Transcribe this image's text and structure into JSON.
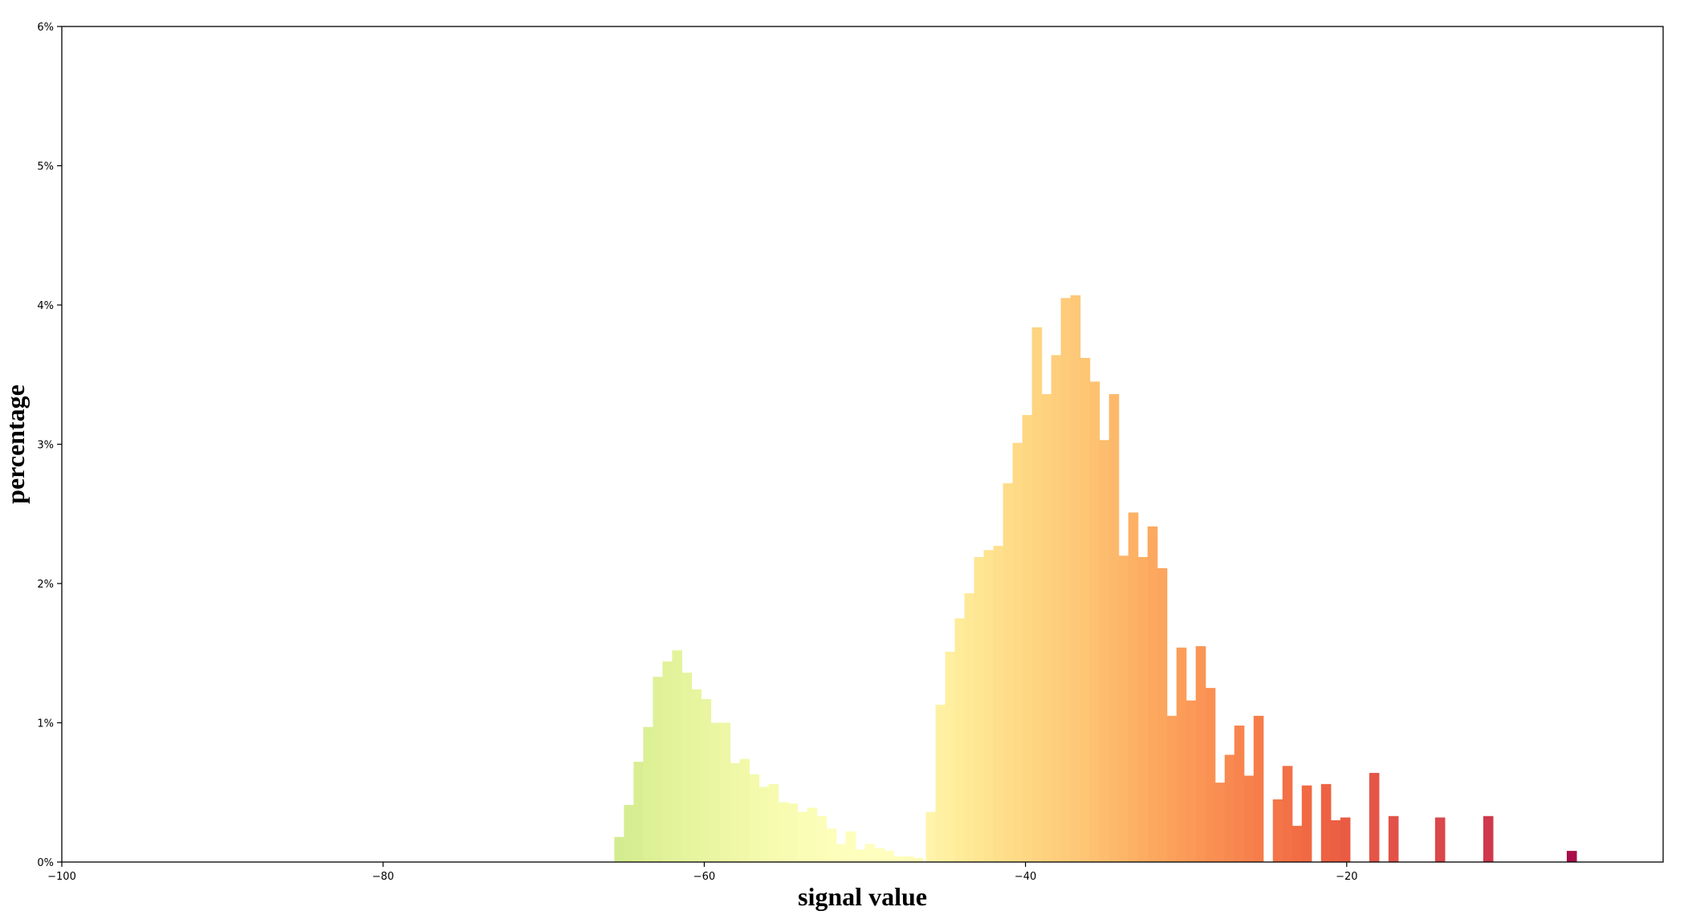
{
  "chart_data": {
    "type": "bar",
    "title": "",
    "xlabel": "signal value",
    "ylabel": "percentage",
    "xlim": [
      -100,
      -0.3
    ],
    "ylim": [
      0,
      6
    ],
    "xticks": [
      -100,
      -80,
      -60,
      -40,
      -20
    ],
    "xtick_labels": [
      "−100",
      "−80",
      "−60",
      "−40",
      "−20"
    ],
    "yticks": [
      0,
      1,
      2,
      3,
      4,
      5,
      6
    ],
    "ytick_labels": [
      "0%",
      "1%",
      "2%",
      "3%",
      "4%",
      "5%",
      "6%"
    ],
    "grid": false,
    "legend": "none",
    "colormap": "Spectral_r",
    "bins": [
      {
        "x0": -65.6,
        "x1": -65.0,
        "value": 0.18,
        "color": "#d3ec8f"
      },
      {
        "x0": -65.0,
        "x1": -64.4,
        "value": 0.41,
        "color": "#d6ed91"
      },
      {
        "x0": -64.4,
        "x1": -63.8,
        "value": 0.72,
        "color": "#d9ee93"
      },
      {
        "x0": -63.8,
        "x1": -63.2,
        "value": 0.97,
        "color": "#dcf095"
      },
      {
        "x0": -63.2,
        "x1": -62.6,
        "value": 1.33,
        "color": "#dff197"
      },
      {
        "x0": -62.6,
        "x1": -62.0,
        "value": 1.44,
        "color": "#e1f299"
      },
      {
        "x0": -62.0,
        "x1": -61.4,
        "value": 1.52,
        "color": "#e3f39b"
      },
      {
        "x0": -61.4,
        "x1": -60.8,
        "value": 1.36,
        "color": "#e5f49d"
      },
      {
        "x0": -60.8,
        "x1": -60.2,
        "value": 1.24,
        "color": "#e7f59f"
      },
      {
        "x0": -60.2,
        "x1": -59.6,
        "value": 1.17,
        "color": "#e9f5a1"
      },
      {
        "x0": -59.6,
        "x1": -59.0,
        "value": 1.0,
        "color": "#ebf6a3"
      },
      {
        "x0": -59.0,
        "x1": -58.4,
        "value": 1.0,
        "color": "#edf7a5"
      },
      {
        "x0": -58.4,
        "x1": -57.8,
        "value": 0.71,
        "color": "#eff8a7"
      },
      {
        "x0": -57.8,
        "x1": -57.2,
        "value": 0.74,
        "color": "#f1f9a9"
      },
      {
        "x0": -57.2,
        "x1": -56.6,
        "value": 0.63,
        "color": "#f3faab"
      },
      {
        "x0": -56.6,
        "x1": -56.0,
        "value": 0.54,
        "color": "#f5fbad"
      },
      {
        "x0": -56.0,
        "x1": -55.4,
        "value": 0.56,
        "color": "#f6fbaf"
      },
      {
        "x0": -55.4,
        "x1": -54.8,
        "value": 0.43,
        "color": "#f7fcb1"
      },
      {
        "x0": -54.8,
        "x1": -54.2,
        "value": 0.42,
        "color": "#f8fcb3"
      },
      {
        "x0": -54.2,
        "x1": -53.6,
        "value": 0.36,
        "color": "#f9fdb5"
      },
      {
        "x0": -53.6,
        "x1": -53.0,
        "value": 0.39,
        "color": "#fafdb6"
      },
      {
        "x0": -53.0,
        "x1": -52.4,
        "value": 0.33,
        "color": "#fbfdb8"
      },
      {
        "x0": -52.4,
        "x1": -51.8,
        "value": 0.24,
        "color": "#fcfeb9"
      },
      {
        "x0": -51.8,
        "x1": -51.2,
        "value": 0.13,
        "color": "#fdfebb"
      },
      {
        "x0": -51.2,
        "x1": -50.6,
        "value": 0.22,
        "color": "#fefebc"
      },
      {
        "x0": -50.6,
        "x1": -50.0,
        "value": 0.09,
        "color": "#fefebd"
      },
      {
        "x0": -50.0,
        "x1": -49.4,
        "value": 0.13,
        "color": "#fefebe"
      },
      {
        "x0": -49.4,
        "x1": -48.8,
        "value": 0.1,
        "color": "#fffebe"
      },
      {
        "x0": -48.8,
        "x1": -48.2,
        "value": 0.08,
        "color": "#fffebe"
      },
      {
        "x0": -48.2,
        "x1": -47.6,
        "value": 0.04,
        "color": "#fffdbc"
      },
      {
        "x0": -47.6,
        "x1": -47.0,
        "value": 0.04,
        "color": "#fffcba"
      },
      {
        "x0": -47.0,
        "x1": -46.4,
        "value": 0.03,
        "color": "#fffbb8"
      },
      {
        "x0": -46.2,
        "x1": -45.6,
        "value": 0.36,
        "color": "#fff4a9"
      },
      {
        "x0": -45.6,
        "x1": -45.0,
        "value": 1.13,
        "color": "#fff1a4"
      },
      {
        "x0": -45.0,
        "x1": -44.4,
        "value": 1.51,
        "color": "#ffef9f"
      },
      {
        "x0": -44.4,
        "x1": -43.8,
        "value": 1.75,
        "color": "#feec9b"
      },
      {
        "x0": -43.8,
        "x1": -43.2,
        "value": 1.93,
        "color": "#fee997"
      },
      {
        "x0": -43.2,
        "x1": -42.6,
        "value": 2.19,
        "color": "#fee693"
      },
      {
        "x0": -42.6,
        "x1": -42.0,
        "value": 2.24,
        "color": "#fee390"
      },
      {
        "x0": -42.0,
        "x1": -41.4,
        "value": 2.27,
        "color": "#fee08c"
      },
      {
        "x0": -41.4,
        "x1": -40.8,
        "value": 2.72,
        "color": "#fedd89"
      },
      {
        "x0": -40.8,
        "x1": -40.2,
        "value": 3.01,
        "color": "#feda86"
      },
      {
        "x0": -40.2,
        "x1": -39.6,
        "value": 3.21,
        "color": "#fed783"
      },
      {
        "x0": -39.6,
        "x1": -39.0,
        "value": 3.84,
        "color": "#fed480"
      },
      {
        "x0": -39.0,
        "x1": -38.4,
        "value": 3.36,
        "color": "#fed17e"
      },
      {
        "x0": -38.4,
        "x1": -37.8,
        "value": 3.64,
        "color": "#fece7c"
      },
      {
        "x0": -37.8,
        "x1": -37.2,
        "value": 4.05,
        "color": "#fdcb7a"
      },
      {
        "x0": -37.2,
        "x1": -36.6,
        "value": 4.07,
        "color": "#fdc877"
      },
      {
        "x0": -36.6,
        "x1": -36.0,
        "value": 3.62,
        "color": "#fdc574"
      },
      {
        "x0": -36.0,
        "x1": -35.4,
        "value": 3.45,
        "color": "#fdc171"
      },
      {
        "x0": -35.4,
        "x1": -34.8,
        "value": 3.03,
        "color": "#fdbd6e"
      },
      {
        "x0": -34.8,
        "x1": -34.2,
        "value": 3.36,
        "color": "#fdb96b"
      },
      {
        "x0": -34.2,
        "x1": -33.6,
        "value": 2.2,
        "color": "#fdb568"
      },
      {
        "x0": -33.6,
        "x1": -33.0,
        "value": 2.51,
        "color": "#fdb165"
      },
      {
        "x0": -33.0,
        "x1": -32.4,
        "value": 2.19,
        "color": "#fdad62"
      },
      {
        "x0": -32.4,
        "x1": -31.8,
        "value": 2.41,
        "color": "#fca95f"
      },
      {
        "x0": -31.8,
        "x1": -31.2,
        "value": 2.11,
        "color": "#fca55d"
      },
      {
        "x0": -31.2,
        "x1": -30.6,
        "value": 1.05,
        "color": "#fca15b"
      },
      {
        "x0": -30.6,
        "x1": -30.0,
        "value": 1.54,
        "color": "#fb9d59"
      },
      {
        "x0": -30.0,
        "x1": -29.4,
        "value": 1.16,
        "color": "#fb9957"
      },
      {
        "x0": -29.4,
        "x1": -28.8,
        "value": 1.55,
        "color": "#fa9555"
      },
      {
        "x0": -28.8,
        "x1": -28.2,
        "value": 1.25,
        "color": "#fa9153"
      },
      {
        "x0": -28.2,
        "x1": -27.6,
        "value": 0.57,
        "color": "#f98d52"
      },
      {
        "x0": -27.6,
        "x1": -27.0,
        "value": 0.77,
        "color": "#f88950"
      },
      {
        "x0": -27.0,
        "x1": -26.4,
        "value": 0.98,
        "color": "#f8854e"
      },
      {
        "x0": -26.4,
        "x1": -25.8,
        "value": 0.62,
        "color": "#f7814c"
      },
      {
        "x0": -25.8,
        "x1": -25.2,
        "value": 1.05,
        "color": "#f67d4a"
      },
      {
        "x0": -24.6,
        "x1": -24.0,
        "value": 0.45,
        "color": "#f47548"
      },
      {
        "x0": -24.0,
        "x1": -23.4,
        "value": 0.69,
        "color": "#f37146"
      },
      {
        "x0": -23.4,
        "x1": -22.8,
        "value": 0.26,
        "color": "#f26d44"
      },
      {
        "x0": -22.8,
        "x1": -22.2,
        "value": 0.55,
        "color": "#f06943"
      },
      {
        "x0": -21.6,
        "x1": -21.0,
        "value": 0.56,
        "color": "#ed6242"
      },
      {
        "x0": -21.0,
        "x1": -20.4,
        "value": 0.3,
        "color": "#eb5f42"
      },
      {
        "x0": -20.4,
        "x1": -19.8,
        "value": 0.32,
        "color": "#e95c43"
      },
      {
        "x0": -18.6,
        "x1": -18.0,
        "value": 0.64,
        "color": "#e55547"
      },
      {
        "x0": -17.4,
        "x1": -16.8,
        "value": 0.33,
        "color": "#e25149"
      },
      {
        "x0": -14.5,
        "x1": -13.9,
        "value": 0.32,
        "color": "#db474a"
      },
      {
        "x0": -11.5,
        "x1": -10.9,
        "value": 0.33,
        "color": "#cf384d"
      },
      {
        "x0": -6.3,
        "x1": -5.7,
        "value": 0.08,
        "color": "#a90c4a"
      }
    ]
  }
}
